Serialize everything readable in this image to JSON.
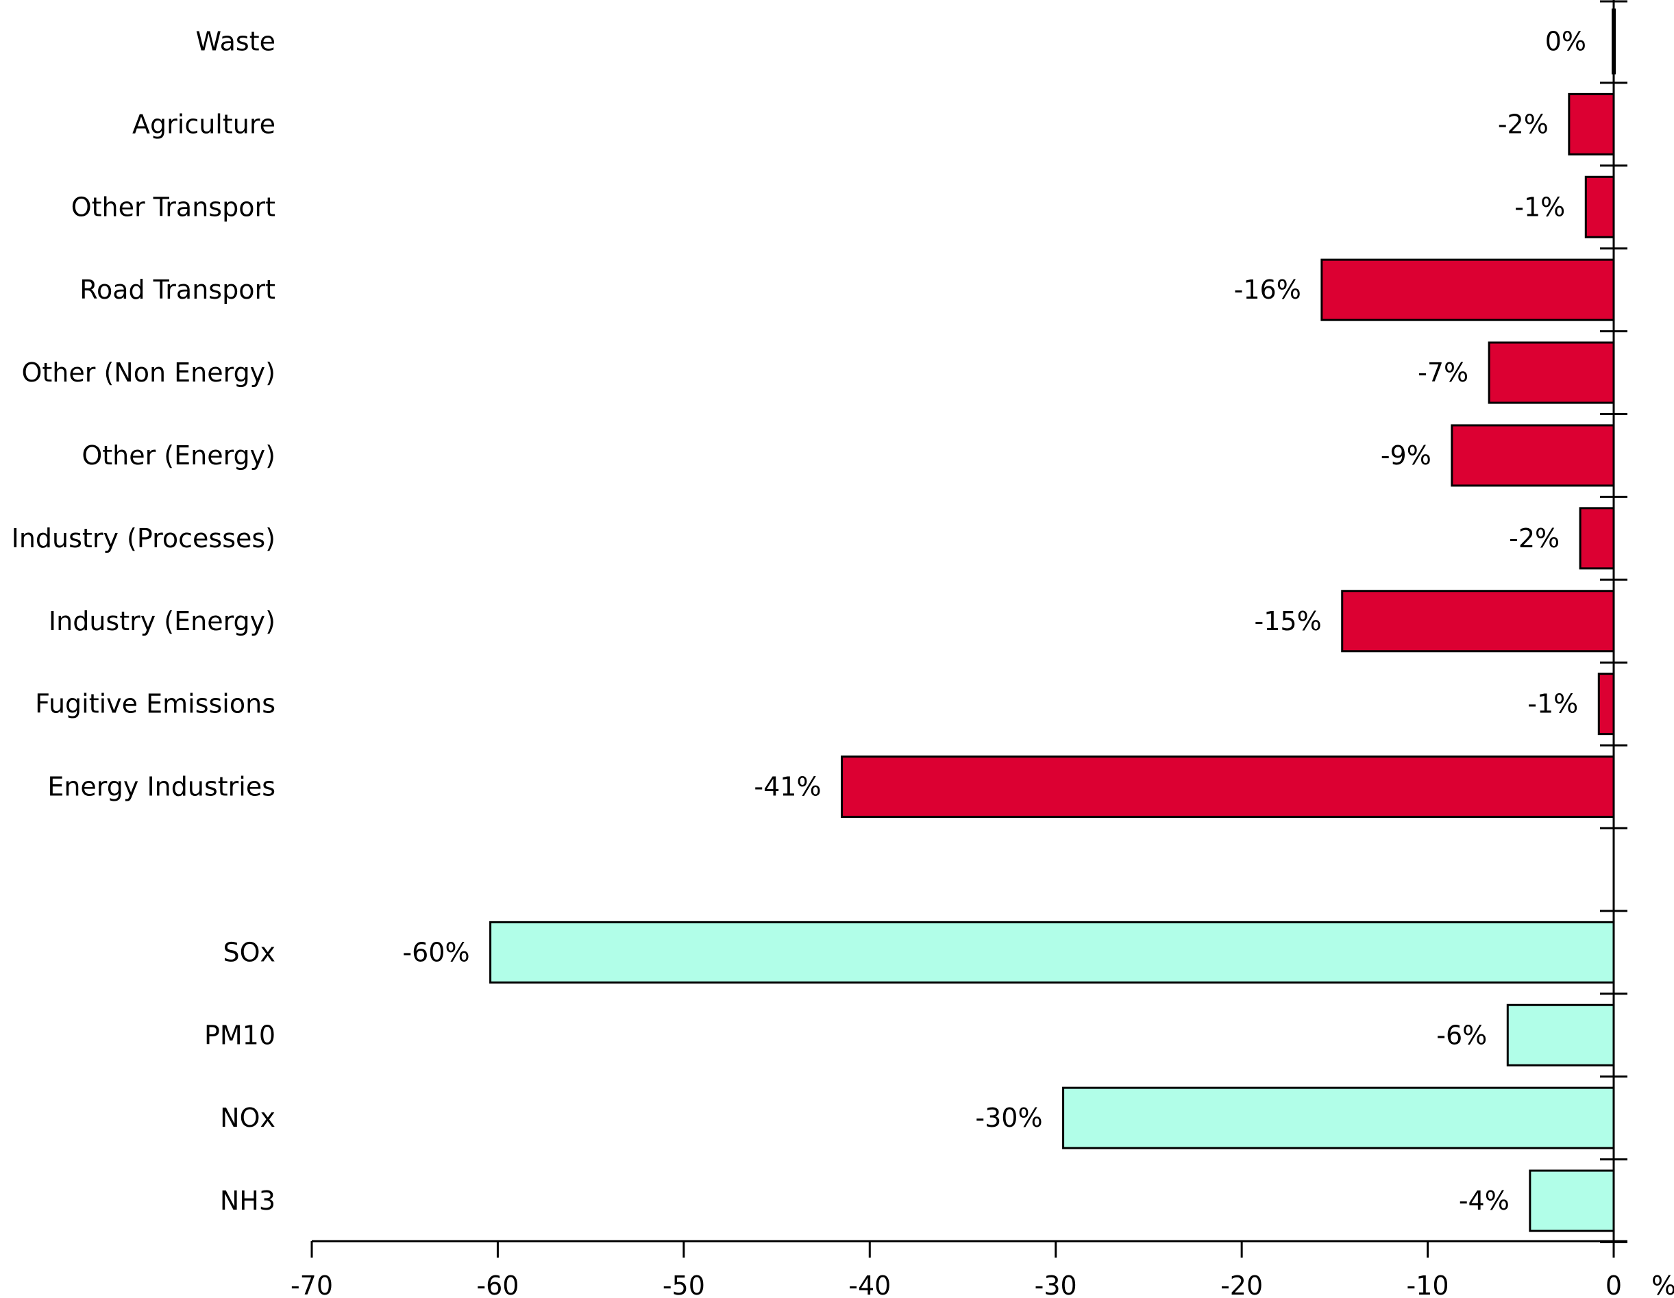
{
  "chart_data": {
    "type": "bar",
    "orientation": "horizontal",
    "categories": [
      "Waste",
      "Agriculture",
      "Other Transport",
      "Road Transport",
      "Other (Non Energy)",
      "Other (Energy)",
      "Industry (Processes)",
      "Industry (Energy)",
      "Fugitive Emissions",
      "Energy Industries",
      "",
      "SOx",
      "PM10",
      "NOx",
      "NH3"
    ],
    "values": [
      0,
      -2.4,
      -1.5,
      -15.7,
      -6.7,
      -8.7,
      -1.8,
      -14.6,
      -0.8,
      -41.5,
      null,
      -60.4,
      -5.7,
      -29.6,
      -4.5
    ],
    "value_labels": [
      "0%",
      "-2%",
      "-1%",
      "-16%",
      "-7%",
      "-9%",
      "-2%",
      "-15%",
      "-1%",
      "-41%",
      "",
      "-60%",
      "-6%",
      "-30%",
      "-4%"
    ],
    "series_color": [
      "#dc0032",
      "#dc0032",
      "#dc0032",
      "#dc0032",
      "#dc0032",
      "#dc0032",
      "#dc0032",
      "#dc0032",
      "#dc0032",
      "#dc0032",
      "",
      "#b1fee8",
      "#b1fee8",
      "#b1fee8",
      "#b1fee8"
    ],
    "colors": {
      "sector": "#dc0032",
      "pollutant": "#b1fee8",
      "outline": "#000000",
      "zero_bar": "#000000"
    },
    "xlim": [
      -70,
      0
    ],
    "xticks": [
      -70,
      -60,
      -50,
      -40,
      -30,
      -20,
      -10,
      0
    ],
    "xtick_labels": [
      "-70",
      "-60",
      "-50",
      "-40",
      "-30",
      "-20",
      "-10",
      "0"
    ],
    "xlabel": "%",
    "title": "",
    "grid": false,
    "legend": "none"
  }
}
